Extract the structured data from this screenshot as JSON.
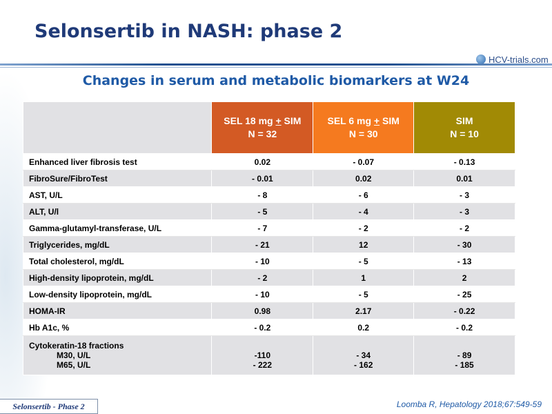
{
  "title": "Selonsertib in NASH: phase 2",
  "logo_text": "HCV-trials.com",
  "subtitle": "Changes in serum and metabolic biomarkers at W24",
  "table": {
    "headers": [
      {
        "line1": "SEL 18 mg + SIM",
        "line2": "N = 32"
      },
      {
        "line1": "SEL 6 mg + SIM",
        "line2": "N = 30"
      },
      {
        "line1": "SIM",
        "line2": "N = 10"
      }
    ],
    "rows": [
      {
        "label": "Enhanced liver fibrosis test",
        "v1": "0.02",
        "v2": "- 0.07",
        "v3": "- 0.13"
      },
      {
        "label": "FibroSure/FibroTest",
        "v1": "- 0.01",
        "v2": "0.02",
        "v3": "0.01"
      },
      {
        "label": "AST, U/L",
        "v1": "- 8",
        "v2": "- 6",
        "v3": "- 3"
      },
      {
        "label": "ALT, U/l",
        "v1": "- 5",
        "v2": "- 4",
        "v3": "- 3"
      },
      {
        "label": "Gamma-glutamyl-transferase, U/L",
        "v1": "- 7",
        "v2": "- 2",
        "v3": "- 2"
      },
      {
        "label": "Triglycerides, mg/dL",
        "v1": "- 21",
        "v2": "12",
        "v3": "- 30"
      },
      {
        "label": "Total cholesterol, mg/dL",
        "v1": "- 10",
        "v2": "- 5",
        "v3": "- 13"
      },
      {
        "label": "High-density lipoprotein, mg/dL",
        "v1": "- 2",
        "v2": "1",
        "v3": "2"
      },
      {
        "label": "Low-density lipoprotein, mg/dL",
        "v1": "- 10",
        "v2": "- 5",
        "v3": "- 25"
      },
      {
        "label": "HOMA-IR",
        "v1": "0.98",
        "v2": "2.17",
        "v3": "- 0.22"
      },
      {
        "label": "Hb A1c, %",
        "v1": "- 0.2",
        "v2": "0.2",
        "v3": "- 0.2"
      }
    ],
    "cytokeratin": {
      "label": "Cytokeratin-18 fractions",
      "m30_label": "M30, U/L",
      "m65_label": "M65, U/L",
      "m30": [
        "-110",
        "- 34",
        "- 89"
      ],
      "m65": [
        "- 222",
        "- 162",
        "- 185"
      ]
    }
  },
  "footer_tag": "Selonsertib - Phase 2",
  "citation": "Loomba R, Hepatology 2018;67:549-59"
}
